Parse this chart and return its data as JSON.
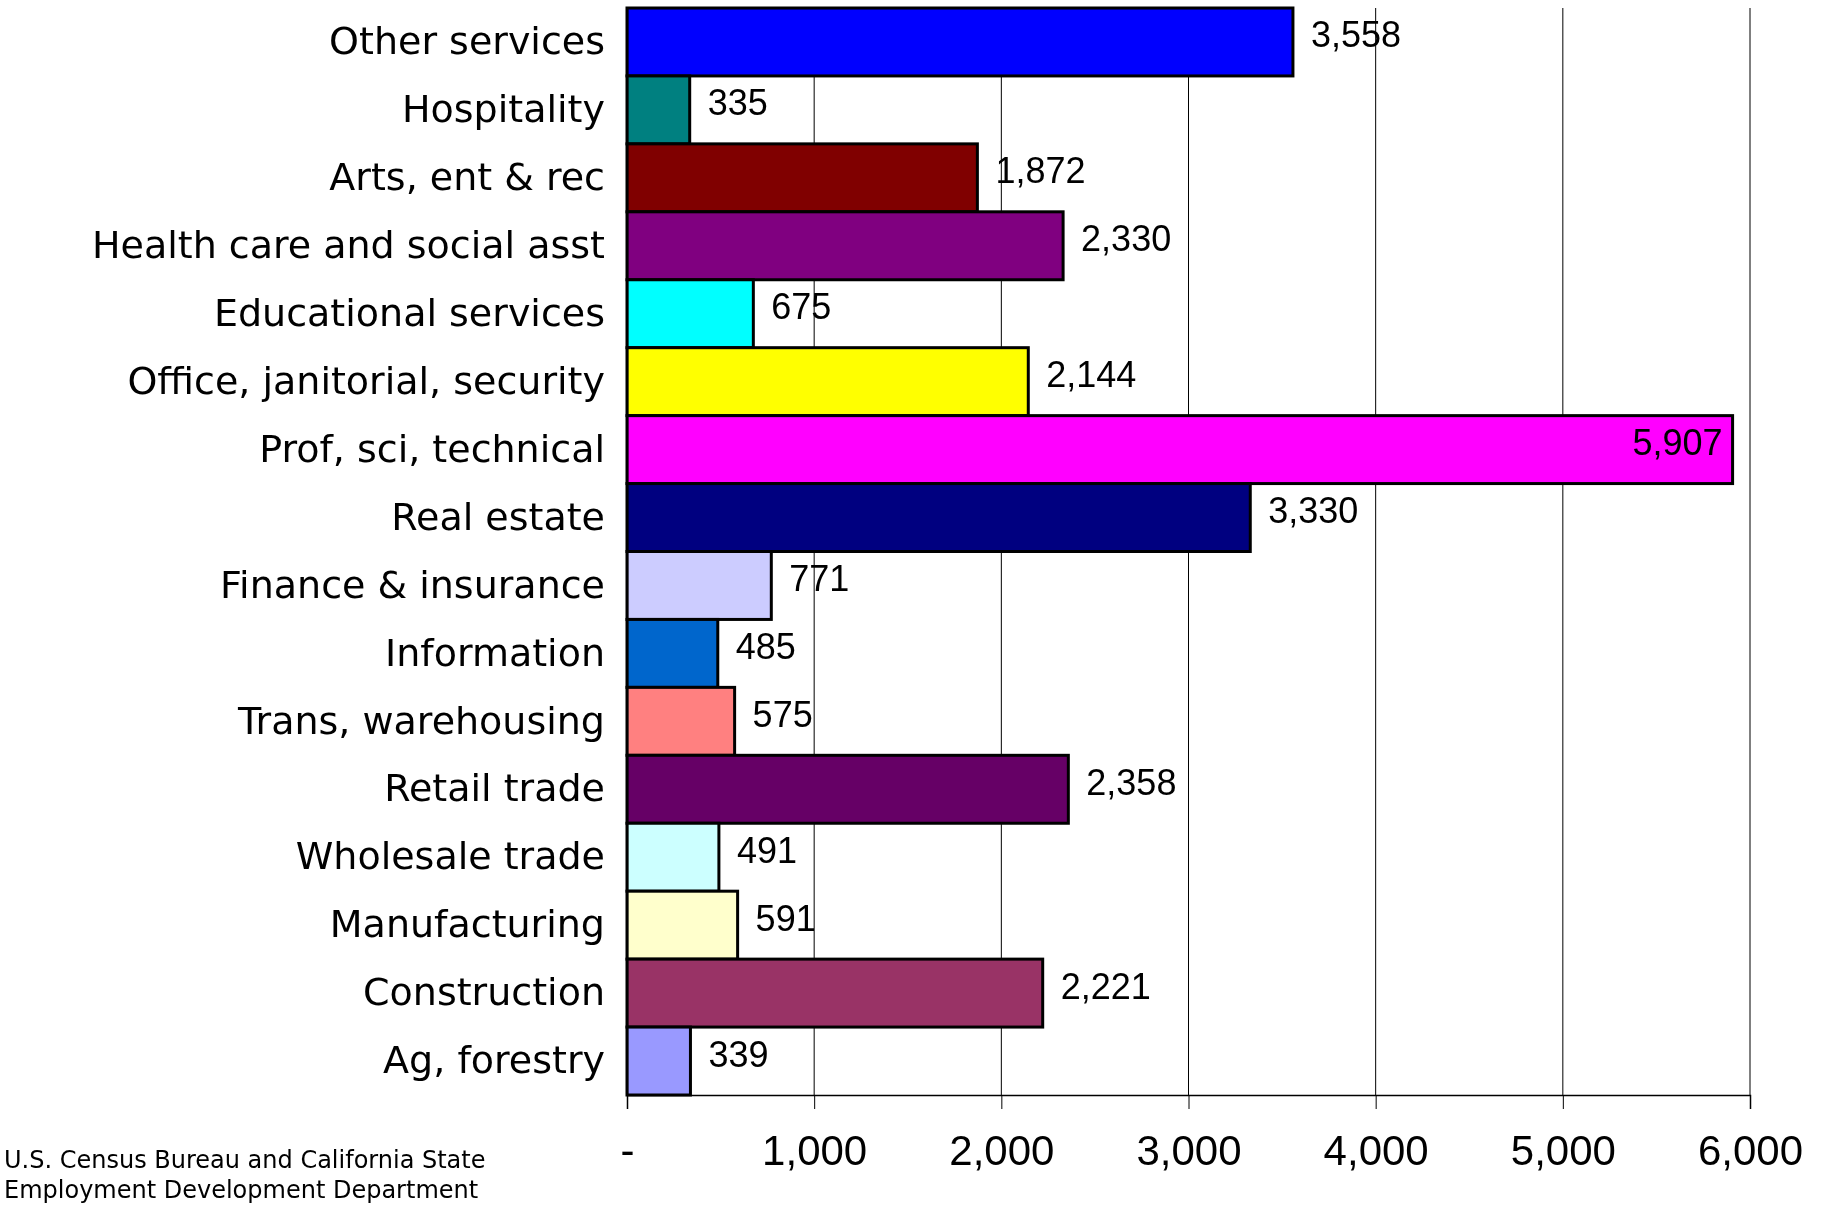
{
  "chart_data": {
    "type": "bar",
    "orientation": "horizontal",
    "categories": [
      "Other services",
      "Hospitality",
      "Arts, ent & rec",
      "Health care and social asst",
      "Educational services",
      "Office, janitorial, security",
      "Prof, sci, technical",
      "Real estate",
      "Finance & insurance",
      "Information",
      "Trans, warehousing",
      "Retail trade",
      "Wholesale trade",
      "Manufacturing",
      "Construction",
      "Ag, forestry"
    ],
    "values": [
      3558,
      335,
      1872,
      2330,
      675,
      2144,
      5907,
      3330,
      771,
      485,
      575,
      2358,
      491,
      591,
      2221,
      339
    ],
    "colors": [
      "#0000ff",
      "#008080",
      "#800000",
      "#800080",
      "#00ffff",
      "#ffff00",
      "#ff00ff",
      "#000080",
      "#ccccff",
      "#0066cc",
      "#ff8080",
      "#660066",
      "#ccffff",
      "#ffffcc",
      "#993366",
      "#9999ff"
    ],
    "value_labels": [
      "3,558",
      "335",
      "1,872",
      "2,330",
      "675",
      "2,144",
      "5,907",
      "3,330",
      "771",
      "485",
      "575",
      "2,358",
      "491",
      "591",
      "2,221",
      "339"
    ],
    "xlim": [
      0,
      6000
    ],
    "xticks": [
      {
        "value": 0,
        "label": "-"
      },
      {
        "value": 1000,
        "label": "1,000"
      },
      {
        "value": 2000,
        "label": "2,000"
      },
      {
        "value": 3000,
        "label": "3,000"
      },
      {
        "value": 4000,
        "label": "4,000"
      },
      {
        "value": 5000,
        "label": "5,000"
      },
      {
        "value": 6000,
        "label": "6,000"
      }
    ],
    "grid": "x",
    "annotations": [
      "U.S. Census Bureau and California State Employment Development Department"
    ]
  }
}
